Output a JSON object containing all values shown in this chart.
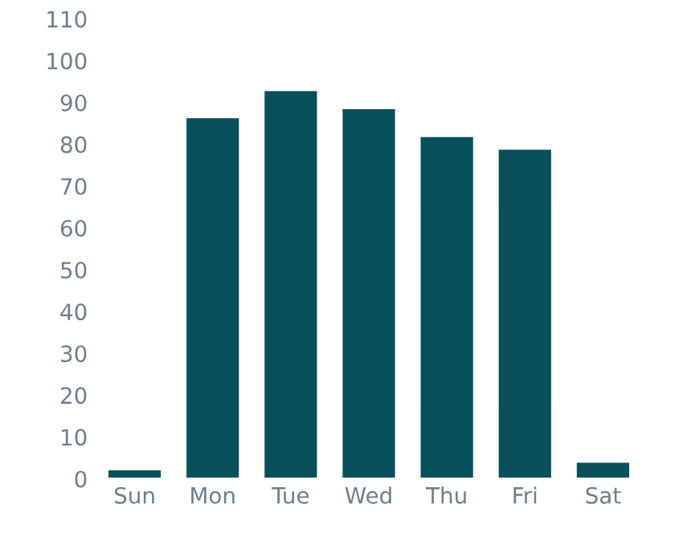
{
  "chart_data": {
    "type": "bar",
    "categories": [
      "Sun",
      "Mon",
      "Tue",
      "Wed",
      "Thu",
      "Fri",
      "Sat"
    ],
    "values": [
      2.3,
      86.5,
      93,
      88.7,
      82,
      79,
      4.1
    ],
    "color": "#07505b",
    "ylim": [
      0,
      110
    ],
    "yticks": [
      0,
      10,
      20,
      30,
      40,
      50,
      60,
      70,
      80,
      90,
      100,
      110
    ],
    "grid": false,
    "legend": false
  }
}
